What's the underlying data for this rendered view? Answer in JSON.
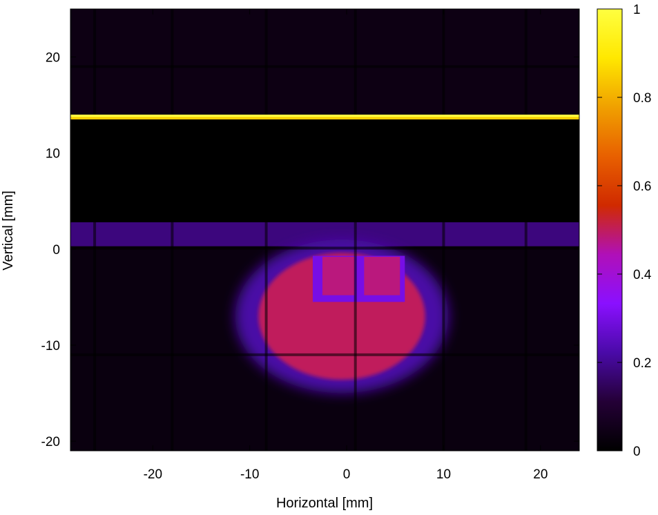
{
  "chart_data": {
    "type": "heatmap",
    "title": "",
    "xlabel": "Horizontal [mm]",
    "ylabel": "Vertical [mm]",
    "xlim": [
      -28.5,
      24
    ],
    "ylim": [
      -21,
      25
    ],
    "xticks": [
      -20,
      -10,
      0,
      10,
      20
    ],
    "yticks": [
      -20,
      -10,
      0,
      10,
      20
    ],
    "colorbar": {
      "range": [
        0,
        1
      ],
      "ticks": [
        0,
        0.2,
        0.4,
        0.6,
        0.8,
        1
      ],
      "tick_labels": [
        "0",
        "0.2",
        "0.4",
        "0.6",
        "0.8",
        "1"
      ],
      "colormap": [
        "#000000",
        "#240036",
        "#4a0aa8",
        "#8a10ff",
        "#b010b8",
        "#d02a00",
        "#e86000",
        "#f0a000",
        "#ffe800",
        "#ffff40"
      ]
    },
    "background_value": 0.03,
    "features": [
      {
        "name": "bright band",
        "shape": "h-band",
        "y": [
          13.5,
          14.0
        ],
        "value": 1.0
      },
      {
        "name": "dark gap",
        "shape": "rect",
        "x": [
          -28.5,
          24
        ],
        "y": [
          2.8,
          13.5
        ],
        "value": 0.0
      },
      {
        "name": "upper-region",
        "shape": "rect",
        "x": [
          -28.5,
          24
        ],
        "y": [
          14.0,
          25
        ],
        "value": 0.04
      },
      {
        "name": "strip",
        "shape": "rect",
        "x": [
          -28.5,
          24
        ],
        "y": [
          0.3,
          2.8
        ],
        "value": 0.18
      },
      {
        "name": "beam-halo",
        "shape": "ellipse",
        "cx": -0.5,
        "cy": -7.0,
        "rx": 11.0,
        "ry": 8.0,
        "value": 0.22
      },
      {
        "name": "beam-core",
        "shape": "ellipse",
        "cx": -0.5,
        "cy": -7.0,
        "rx": 8.6,
        "ry": 6.6,
        "value": 0.5
      },
      {
        "name": "inner-box",
        "shape": "rect",
        "x": [
          -3.5,
          6.0
        ],
        "y": [
          -5.5,
          -0.7
        ],
        "value": 0.3
      },
      {
        "name": "inner-left",
        "shape": "rect",
        "x": [
          -2.5,
          0.8
        ],
        "y": [
          -4.8,
          -0.8
        ],
        "value": 0.48
      },
      {
        "name": "inner-right",
        "shape": "rect",
        "x": [
          1.8,
          5.5
        ],
        "y": [
          -4.8,
          -0.8
        ],
        "value": 0.48
      }
    ],
    "grid_lines_vertical_mm": [
      -26,
      -18,
      -8.3,
      0.9,
      10,
      18.5
    ],
    "grid_lines_horizontal_mm": [
      -11,
      0.1,
      19
    ]
  }
}
